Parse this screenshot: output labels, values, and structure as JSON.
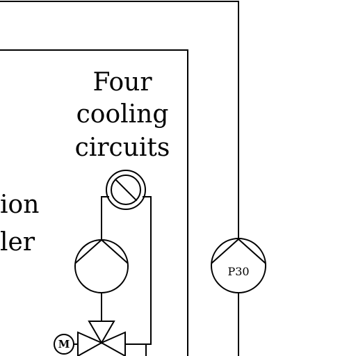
{
  "labels": {
    "circuits_line1": "Four",
    "circuits_line2": "cooling",
    "circuits_line3": "circuits",
    "left_partial_line1": "ion",
    "left_partial_line2": "ler",
    "pump_tag": "P30",
    "motor_symbol": "M"
  },
  "colors": {
    "ink": "#000000",
    "background": "#ffffff"
  }
}
